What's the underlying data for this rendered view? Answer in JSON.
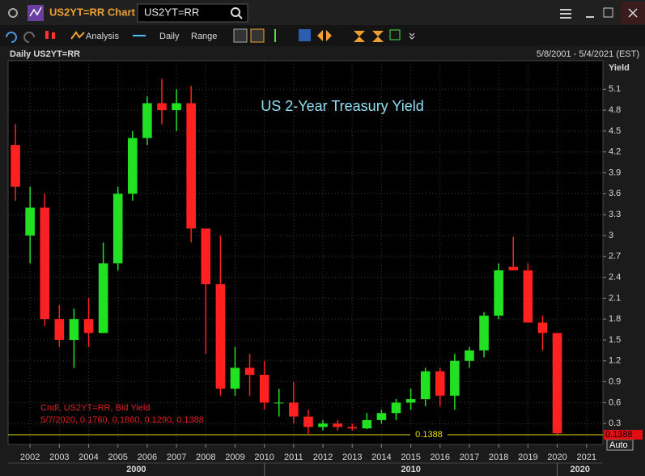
{
  "toolbar": {
    "title": "US2YT=RR Chart",
    "search": "US2YT=RR",
    "buttons": [
      "Analysis",
      "Daily",
      "Range"
    ]
  },
  "header": {
    "left": "Daily US2YT=RR",
    "right": "5/8/2001 - 5/4/2021 (EST)"
  },
  "chart_data": {
    "type": "candlestick",
    "title": "US 2-Year Treasury Yield",
    "y_label": "Yield",
    "axis_button": "Auto",
    "legend": [
      "Cndl, US2YT=RR, Bid Yield",
      "5/7/2020, 0.1760, 0.1860, 0.1290, 0.1388"
    ],
    "up_color": "#22e022",
    "down_color": "#ff2020",
    "grid": true,
    "x": [
      2001.5,
      2002.0,
      2002.5,
      2003.0,
      2003.5,
      2004.0,
      2004.5,
      2005.0,
      2005.5,
      2006.0,
      2006.5,
      2007.0,
      2007.5,
      2008.0,
      2008.5,
      2009.0,
      2009.5,
      2010.0,
      2010.5,
      2011.0,
      2011.5,
      2012.0,
      2012.5,
      2013.0,
      2013.5,
      2014.0,
      2014.5,
      2015.0,
      2015.5,
      2016.0,
      2016.5,
      2017.0,
      2017.5,
      2018.0,
      2018.5,
      2019.0,
      2019.5,
      2020.0
    ],
    "open": [
      4.3,
      3.0,
      3.4,
      1.8,
      1.5,
      1.8,
      1.6,
      2.6,
      3.6,
      4.4,
      4.9,
      4.8,
      4.9,
      3.1,
      2.3,
      0.8,
      1.1,
      1.0,
      0.6,
      0.6,
      0.4,
      0.25,
      0.3,
      0.25,
      0.23,
      0.35,
      0.45,
      0.6,
      0.65,
      1.05,
      0.7,
      1.2,
      1.35,
      1.85,
      2.55,
      2.5,
      1.75,
      1.6
    ],
    "high": [
      4.6,
      3.7,
      3.6,
      2.0,
      1.95,
      2.1,
      2.9,
      3.7,
      4.5,
      5.0,
      5.25,
      5.1,
      5.15,
      3.1,
      3.0,
      1.4,
      1.3,
      1.2,
      0.8,
      0.9,
      0.5,
      0.35,
      0.35,
      0.3,
      0.45,
      0.5,
      0.65,
      0.8,
      1.1,
      1.1,
      1.3,
      1.4,
      1.9,
      2.6,
      2.98,
      2.6,
      1.85,
      1.6
    ],
    "low": [
      3.5,
      2.6,
      1.7,
      1.4,
      1.1,
      1.4,
      1.6,
      2.5,
      3.5,
      4.3,
      4.6,
      4.5,
      2.9,
      1.3,
      0.7,
      0.7,
      0.7,
      0.5,
      0.4,
      0.3,
      0.15,
      0.2,
      0.2,
      0.2,
      0.22,
      0.3,
      0.35,
      0.5,
      0.55,
      0.55,
      0.5,
      1.1,
      1.25,
      1.8,
      2.5,
      1.75,
      1.35,
      0.14
    ],
    "close": [
      3.7,
      3.4,
      1.8,
      1.5,
      1.8,
      1.6,
      2.6,
      3.6,
      4.4,
      4.9,
      4.8,
      4.9,
      3.1,
      2.3,
      0.8,
      1.1,
      1.0,
      0.6,
      0.6,
      0.4,
      0.25,
      0.3,
      0.25,
      0.23,
      0.35,
      0.45,
      0.6,
      0.65,
      1.05,
      0.7,
      1.2,
      1.35,
      1.85,
      2.5,
      2.5,
      1.75,
      1.6,
      0.16
    ],
    "last_value": 0.1388,
    "xlim": [
      2001.25,
      2021.56
    ],
    "xticks": [
      2002,
      2003,
      2004,
      2005,
      2006,
      2007,
      2008,
      2009,
      2010,
      2011,
      2012,
      2013,
      2014,
      2015,
      2016,
      2017,
      2018,
      2019,
      2020,
      2021
    ],
    "decades": [
      2000,
      2010,
      2020
    ],
    "ylim": [
      0,
      5.51
    ],
    "yticks": [
      0.3,
      0.6,
      0.9,
      1.2,
      1.5,
      1.8,
      2.1,
      2.4,
      2.7,
      3,
      3.3,
      3.6,
      3.9,
      4.2,
      4.5,
      4.8,
      5.1
    ]
  }
}
